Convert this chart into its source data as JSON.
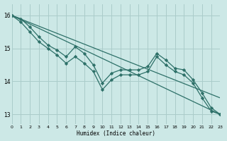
{
  "xlabel": "Humidex (Indice chaleur)",
  "bg_color": "#cce8e6",
  "grid_color": "#aaccca",
  "line_color": "#2d7068",
  "x_range": [
    0,
    23
  ],
  "y_range": [
    12.7,
    16.35
  ],
  "line1_x": [
    0,
    23
  ],
  "line1_y": [
    16.0,
    13.0
  ],
  "line2_x": [
    0,
    23
  ],
  "line2_y": [
    16.0,
    13.5
  ],
  "line3_x": [
    0,
    1,
    2,
    3,
    4,
    5,
    6,
    7,
    8,
    9,
    10,
    11,
    12,
    13,
    14,
    15,
    16,
    17,
    18,
    19,
    20,
    21,
    22,
    23
  ],
  "line3_y": [
    16.0,
    15.9,
    15.65,
    15.35,
    15.1,
    14.95,
    14.75,
    15.05,
    14.85,
    14.5,
    13.95,
    14.25,
    14.35,
    14.35,
    14.35,
    14.45,
    14.85,
    14.65,
    14.4,
    14.35,
    14.05,
    13.65,
    13.2,
    13.0
  ],
  "line4_x": [
    0,
    1,
    2,
    3,
    4,
    5,
    6,
    7,
    8,
    9,
    10,
    11,
    12,
    13,
    14,
    15,
    16,
    17,
    18,
    19,
    20,
    21,
    22,
    23
  ],
  "line4_y": [
    16.0,
    15.8,
    15.5,
    15.2,
    15.0,
    14.8,
    14.55,
    14.75,
    14.55,
    14.3,
    13.75,
    14.05,
    14.2,
    14.2,
    14.2,
    14.3,
    14.75,
    14.5,
    14.3,
    14.2,
    13.95,
    13.5,
    13.1,
    13.0
  ],
  "yticks": [
    13,
    14,
    15,
    16
  ],
  "xticks": [
    0,
    1,
    2,
    3,
    4,
    5,
    6,
    7,
    8,
    9,
    10,
    11,
    12,
    13,
    14,
    15,
    16,
    17,
    18,
    19,
    20,
    21,
    22,
    23
  ],
  "xtick_labels": [
    "0",
    "1",
    "2",
    "3",
    "4",
    "5",
    "6",
    "7",
    "8",
    "9",
    "10",
    "11",
    "12",
    "13",
    "14",
    "15",
    "16",
    "17",
    "18",
    "19",
    "20",
    "21",
    "22",
    "23"
  ]
}
